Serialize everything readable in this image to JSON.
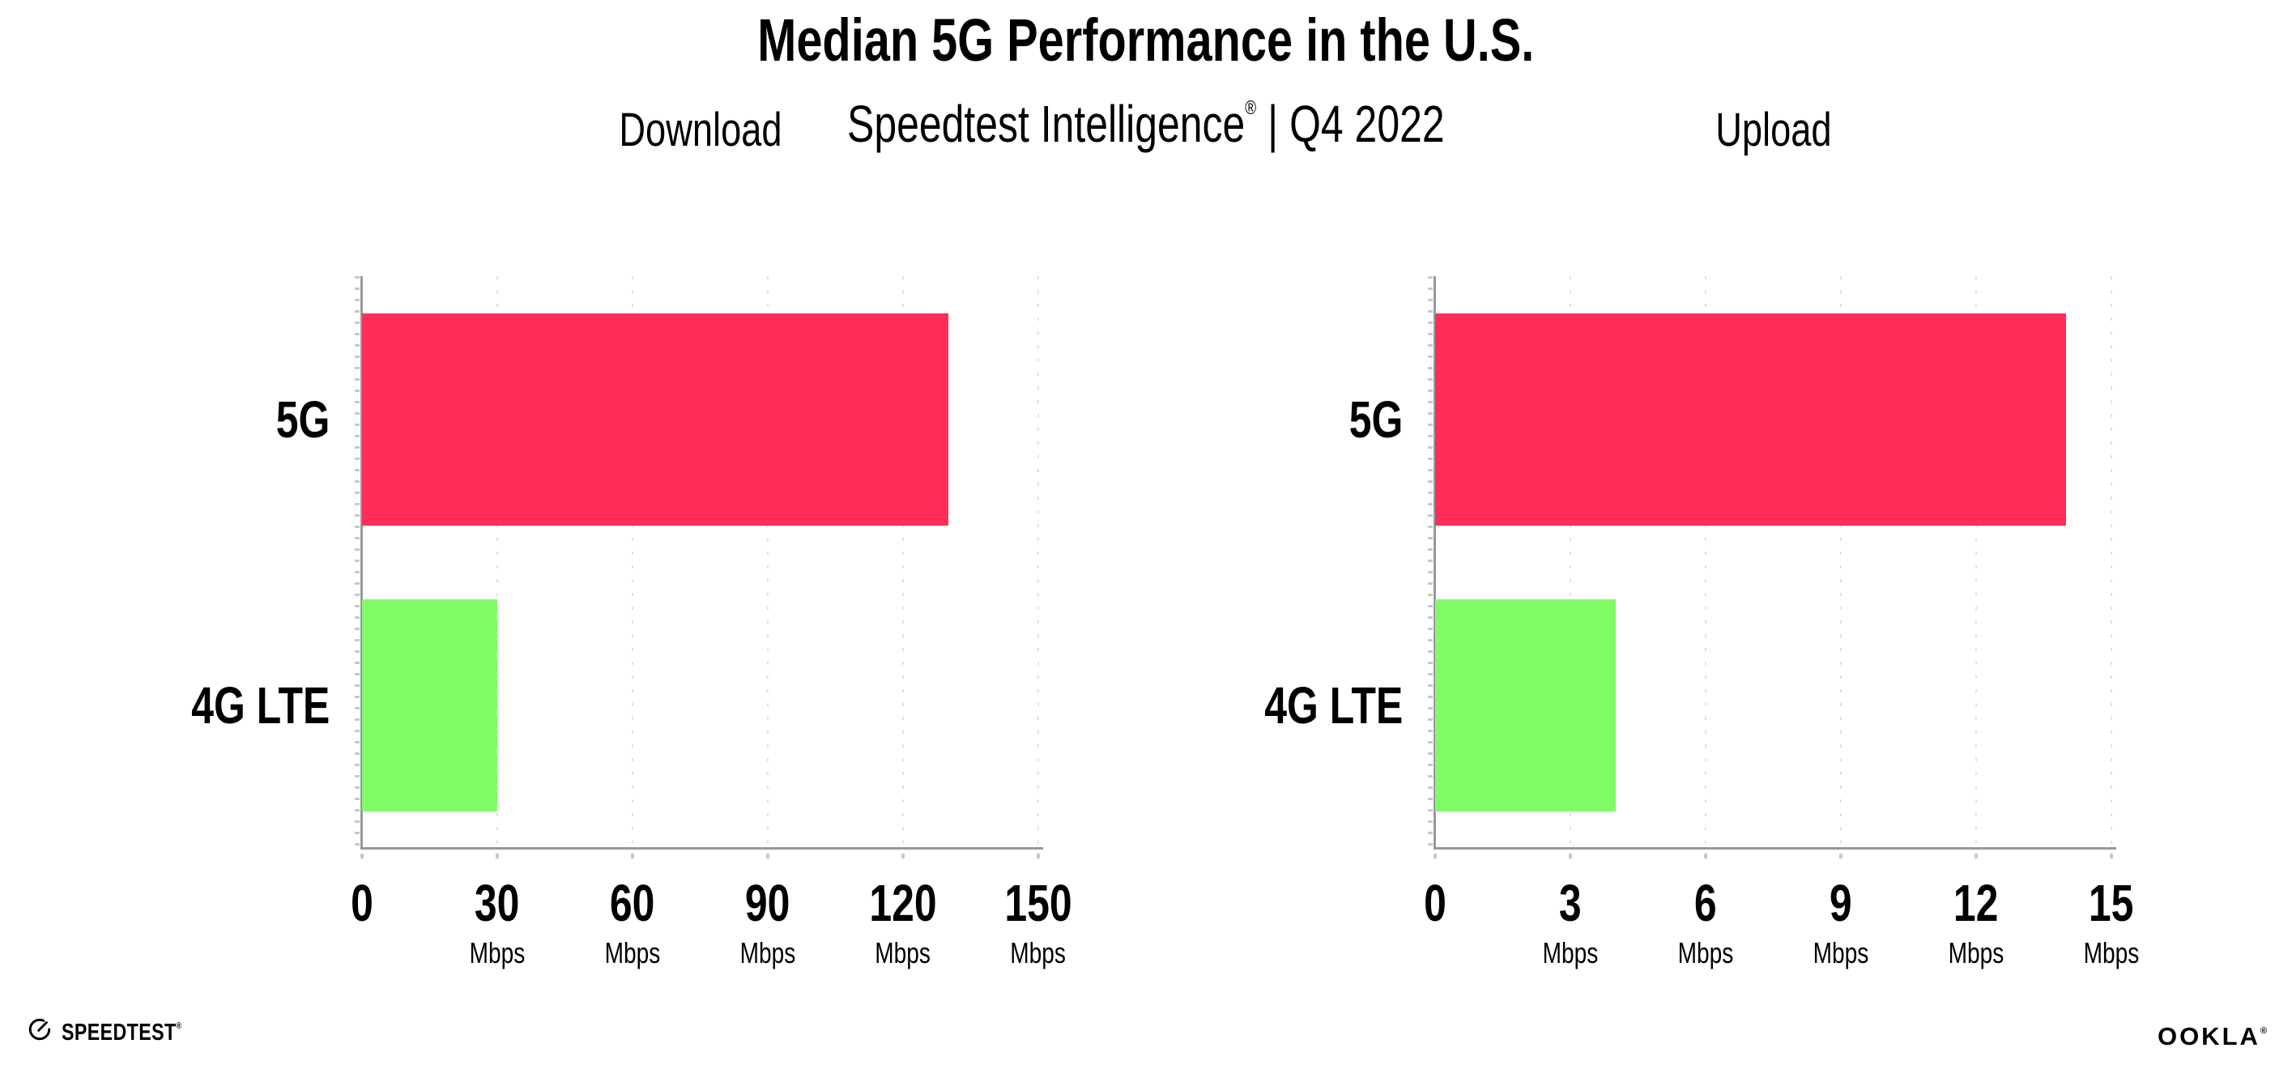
{
  "header": {
    "title": "Median 5G Performance in the U.S.",
    "subtitle": {
      "brand": "Speedtest Intelligence",
      "mark": "®",
      "separator": "|",
      "period": "Q4 2022"
    }
  },
  "chart_data": [
    {
      "type": "bar",
      "orientation": "horizontal",
      "title": "Download",
      "categories": [
        "5G",
        "4G LTE"
      ],
      "values": [
        130,
        30
      ],
      "unit": "Mbps",
      "xlim": [
        0,
        150
      ],
      "xticks": [
        0,
        30,
        60,
        90,
        120,
        150
      ],
      "bar_colors": [
        "#FF2D58",
        "#80FB66"
      ],
      "grid": "vertical-dotted",
      "legend": "none"
    },
    {
      "type": "bar",
      "orientation": "horizontal",
      "title": "Upload",
      "categories": [
        "5G",
        "4G LTE"
      ],
      "values": [
        14,
        4
      ],
      "unit": "Mbps",
      "xlim": [
        0,
        15
      ],
      "xticks": [
        0,
        3,
        6,
        9,
        12,
        15
      ],
      "bar_colors": [
        "#FF2D58",
        "#80FB66"
      ],
      "grid": "vertical-dotted",
      "legend": "none"
    }
  ],
  "footer": {
    "speedtest": {
      "label": "SPEEDTEST",
      "mark": "®"
    },
    "ookla": {
      "label": "OOKLA",
      "mark": "®"
    }
  },
  "colors": {
    "bar_5g": "#FF2D58",
    "bar_4g_lte": "#80FB66",
    "axis": "#97979D",
    "gridline_dot": "#E0E0EA",
    "text": "#000000",
    "background": "#FFFFFF"
  }
}
